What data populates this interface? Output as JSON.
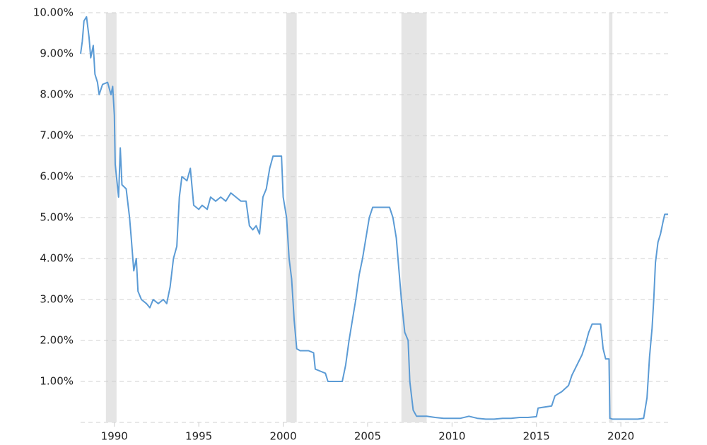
{
  "chart_data": {
    "type": "line",
    "x": [
      1988.0,
      1988.1,
      1988.2,
      1988.35,
      1988.5,
      1988.6,
      1988.75,
      1988.85,
      1989.0,
      1989.1,
      1989.3,
      1989.6,
      1989.8,
      1989.9,
      1990.0,
      1990.05,
      1990.15,
      1990.25,
      1990.35,
      1990.45,
      1990.7,
      1990.9,
      1991.0,
      1991.15,
      1991.3,
      1991.4,
      1991.6,
      1991.9,
      1992.1,
      1992.3,
      1992.6,
      1992.9,
      1993.1,
      1993.3,
      1993.5,
      1993.7,
      1993.85,
      1994.0,
      1994.3,
      1994.5,
      1994.7,
      1995.0,
      1995.2,
      1995.5,
      1995.7,
      1996.0,
      1996.3,
      1996.6,
      1996.9,
      1997.2,
      1997.5,
      1997.8,
      1998.0,
      1998.2,
      1998.4,
      1998.6,
      1998.8,
      1999.0,
      1999.2,
      1999.4,
      1999.6,
      1999.9,
      2000.0,
      2000.2,
      2000.35,
      2000.5,
      2000.65,
      2000.8,
      2001.0,
      2001.5,
      2001.8,
      2001.9,
      2002.2,
      2002.5,
      2002.65,
      2003.0,
      2003.5,
      2003.7,
      2003.9,
      2004.1,
      2004.3,
      2004.5,
      2004.7,
      2004.9,
      2005.1,
      2005.3,
      2005.6,
      2006.0,
      2006.3,
      2006.5,
      2006.7,
      2006.9,
      2007.0,
      2007.2,
      2007.4,
      2007.5,
      2007.7,
      2007.9,
      2008.5,
      2009.0,
      2009.5,
      2010.0,
      2010.5,
      2011.0,
      2011.5,
      2012.0,
      2012.5,
      2013.0,
      2013.5,
      2014.0,
      2014.5,
      2015.0,
      2015.1,
      2015.9,
      2016.1,
      2016.5,
      2016.9,
      2017.1,
      2017.4,
      2017.7,
      2017.9,
      2018.1,
      2018.3,
      2018.8,
      2018.95,
      2019.1,
      2019.3,
      2019.35,
      2019.5,
      2020.0,
      2020.5,
      2021.0,
      2021.35,
      2021.55,
      2021.7,
      2021.85,
      2021.95,
      2022.05,
      2022.2,
      2022.35,
      2022.5,
      2022.6,
      2022.8
    ],
    "values": [
      9.0,
      9.3,
      9.8,
      9.9,
      9.4,
      8.9,
      9.2,
      8.5,
      8.3,
      8.0,
      8.25,
      8.3,
      8.0,
      8.2,
      7.5,
      6.3,
      5.9,
      5.5,
      6.7,
      5.8,
      5.7,
      5.0,
      4.5,
      3.7,
      4.0,
      3.2,
      3.0,
      2.9,
      2.8,
      3.0,
      2.9,
      3.0,
      2.9,
      3.3,
      4.0,
      4.3,
      5.5,
      6.0,
      5.9,
      6.2,
      5.3,
      5.2,
      5.3,
      5.2,
      5.5,
      5.4,
      5.5,
      5.4,
      5.6,
      5.5,
      5.4,
      5.4,
      4.8,
      4.7,
      4.8,
      4.6,
      5.5,
      5.7,
      6.2,
      6.5,
      6.5,
      6.5,
      5.5,
      5.0,
      4.0,
      3.5,
      2.5,
      1.8,
      1.75,
      1.75,
      1.7,
      1.3,
      1.25,
      1.2,
      1.0,
      1.0,
      1.0,
      1.4,
      2.0,
      2.5,
      3.0,
      3.6,
      4.0,
      4.5,
      5.0,
      5.25,
      5.25,
      5.25,
      5.25,
      5.0,
      4.5,
      3.5,
      3.0,
      2.2,
      2.0,
      1.0,
      0.3,
      0.15,
      0.15,
      0.12,
      0.1,
      0.1,
      0.1,
      0.15,
      0.1,
      0.08,
      0.08,
      0.1,
      0.1,
      0.12,
      0.12,
      0.14,
      0.35,
      0.4,
      0.65,
      0.75,
      0.9,
      1.15,
      1.4,
      1.65,
      1.9,
      2.2,
      2.4,
      2.4,
      1.8,
      1.55,
      1.55,
      0.1,
      0.08,
      0.08,
      0.08,
      0.08,
      0.1,
      0.6,
      1.6,
      2.3,
      3.0,
      3.9,
      4.4,
      4.6,
      4.9,
      5.08,
      5.08
    ],
    "color": "#5b9bd5",
    "xlim": [
      1988,
      2022.8
    ],
    "xticks": [
      1990,
      1995,
      2000,
      2005,
      2010,
      2015,
      2020
    ],
    "ylim": [
      0,
      10
    ],
    "yticks": [
      {
        "value": 1,
        "label": "1.00%"
      },
      {
        "value": 2,
        "label": "2.00%"
      },
      {
        "value": 3,
        "label": "3.00%"
      },
      {
        "value": 4,
        "label": "4.00%"
      },
      {
        "value": 5,
        "label": "5.00%"
      },
      {
        "value": 6,
        "label": "6.00%"
      },
      {
        "value": 7,
        "label": "7.00%"
      },
      {
        "value": 8,
        "label": "8.00%"
      },
      {
        "value": 9,
        "label": "9.00%"
      },
      {
        "value": 10,
        "label": "10.00%"
      }
    ],
    "grid": true,
    "shaded_periods": [
      [
        1989.5,
        1990.13
      ],
      [
        2000.18,
        2000.8
      ],
      [
        2007.0,
        2008.5
      ],
      [
        2019.3,
        2019.5
      ]
    ],
    "shade_color": "#e5e5e5"
  }
}
